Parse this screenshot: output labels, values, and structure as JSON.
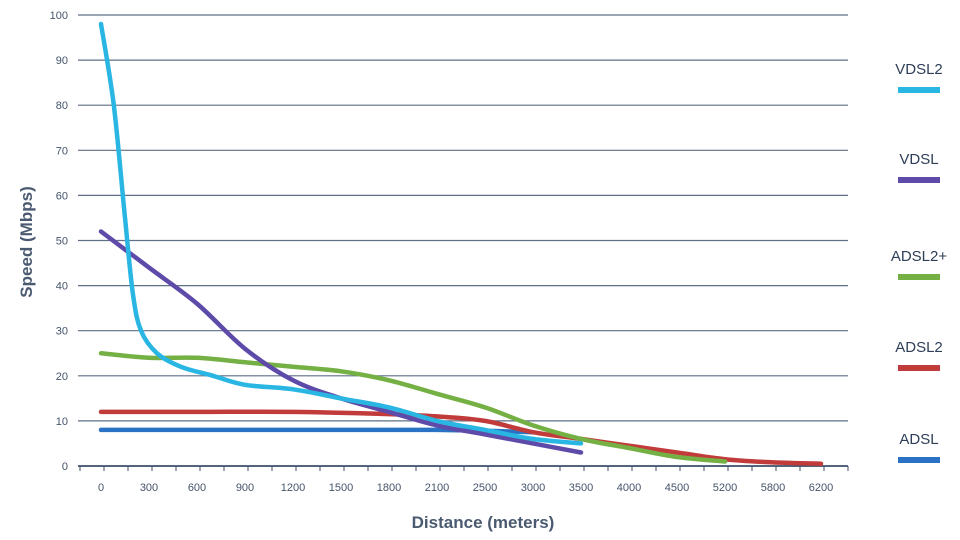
{
  "chart_data": {
    "type": "line",
    "xlabel": "Distance (meters)",
    "ylabel": "Speed (Mbps)",
    "x_ticks": [
      "0",
      "300",
      "600",
      "900",
      "1200",
      "1500",
      "1800",
      "2100",
      "2500",
      "3000",
      "3500",
      "4000",
      "4500",
      "5200",
      "5800",
      "6200"
    ],
    "y_ticks": [
      0,
      10,
      20,
      30,
      40,
      50,
      60,
      70,
      80,
      90,
      100
    ],
    "ylim": [
      0,
      100
    ],
    "grid": "horizontal",
    "legend_position": "right",
    "x_axis_note": "Tick labels are evenly spaced categories; series x values are in meters along that axis.",
    "series": [
      {
        "name": "VDSL2",
        "color": "#29b6e3",
        "points": [
          [
            0,
            98
          ],
          [
            80,
            80
          ],
          [
            150,
            55
          ],
          [
            200,
            38
          ],
          [
            250,
            30
          ],
          [
            350,
            25
          ],
          [
            500,
            22
          ],
          [
            700,
            20
          ],
          [
            900,
            18
          ],
          [
            1200,
            17
          ],
          [
            1500,
            15
          ],
          [
            1800,
            13
          ],
          [
            2100,
            10
          ],
          [
            2500,
            8
          ],
          [
            3000,
            6
          ],
          [
            3500,
            5
          ]
        ]
      },
      {
        "name": "VDSL",
        "color": "#5e4aa8",
        "points": [
          [
            0,
            52
          ],
          [
            300,
            44
          ],
          [
            600,
            36
          ],
          [
            900,
            26
          ],
          [
            1200,
            19
          ],
          [
            1500,
            15
          ],
          [
            1800,
            12
          ],
          [
            2100,
            9
          ],
          [
            2500,
            7
          ],
          [
            3000,
            5
          ],
          [
            3500,
            3
          ]
        ]
      },
      {
        "name": "ADSL2+",
        "color": "#74b043",
        "points": [
          [
            0,
            25
          ],
          [
            300,
            24
          ],
          [
            600,
            24
          ],
          [
            900,
            23
          ],
          [
            1200,
            22
          ],
          [
            1500,
            21
          ],
          [
            1800,
            19
          ],
          [
            2100,
            16
          ],
          [
            2500,
            13
          ],
          [
            3000,
            9
          ],
          [
            3500,
            6
          ],
          [
            4000,
            4
          ],
          [
            4500,
            2
          ],
          [
            5200,
            1
          ]
        ]
      },
      {
        "name": "ADSL2",
        "color": "#c23b3b",
        "points": [
          [
            0,
            12
          ],
          [
            600,
            12
          ],
          [
            1200,
            12
          ],
          [
            1800,
            11.5
          ],
          [
            2100,
            11
          ],
          [
            2500,
            10
          ],
          [
            3000,
            7.5
          ],
          [
            3500,
            6
          ],
          [
            4000,
            4.5
          ],
          [
            4500,
            3
          ],
          [
            5200,
            1.5
          ],
          [
            5800,
            0.8
          ],
          [
            6200,
            0.5
          ]
        ]
      },
      {
        "name": "ADSL",
        "color": "#2a72c4",
        "points": [
          [
            0,
            8
          ],
          [
            600,
            8
          ],
          [
            1200,
            8
          ],
          [
            1800,
            8
          ],
          [
            2100,
            8
          ],
          [
            2500,
            7.8
          ],
          [
            3000,
            7.5
          ]
        ]
      }
    ]
  }
}
